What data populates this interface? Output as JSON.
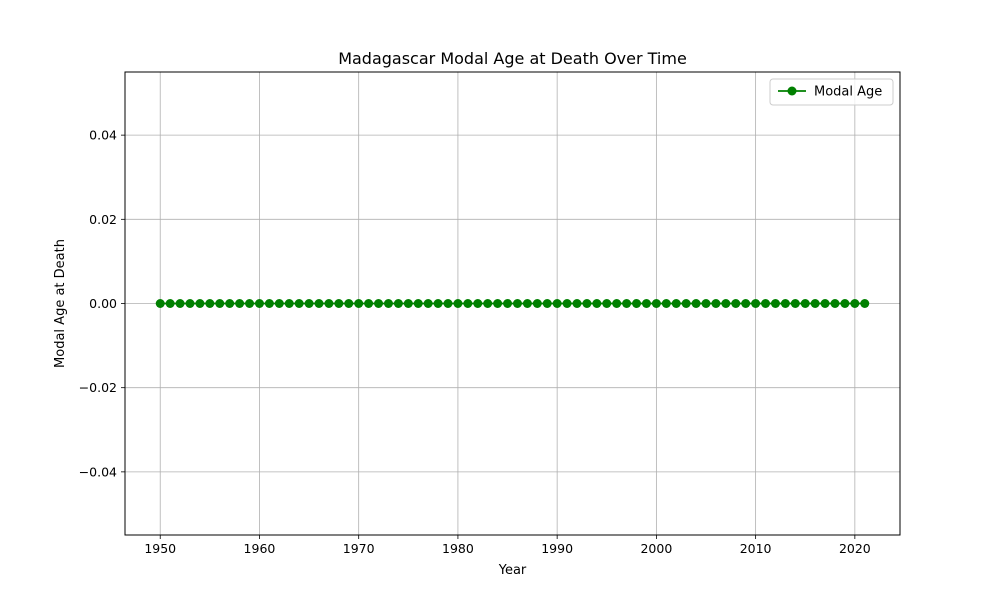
{
  "chart_data": {
    "type": "line",
    "title": "Madagascar Modal Age at Death Over Time",
    "xlabel": "Year",
    "ylabel": "Modal Age at Death",
    "xlim": [
      1946.45,
      2024.55
    ],
    "ylim": [
      -0.055,
      0.055
    ],
    "x_ticks": [
      1950,
      1960,
      1970,
      1980,
      1990,
      2000,
      2010,
      2020
    ],
    "x_tick_labels": [
      "1950",
      "1960",
      "1970",
      "1980",
      "1990",
      "2000",
      "2010",
      "2020"
    ],
    "y_ticks": [
      -0.04,
      -0.02,
      0.0,
      0.02,
      0.04
    ],
    "y_tick_labels": [
      "−0.04",
      "−0.02",
      "0.00",
      "0.02",
      "0.04"
    ],
    "grid": true,
    "legend_position": "top-right",
    "series": [
      {
        "name": "Modal Age",
        "color": "#008000",
        "marker": "circle",
        "x": [
          1950,
          1951,
          1952,
          1953,
          1954,
          1955,
          1956,
          1957,
          1958,
          1959,
          1960,
          1961,
          1962,
          1963,
          1964,
          1965,
          1966,
          1967,
          1968,
          1969,
          1970,
          1971,
          1972,
          1973,
          1974,
          1975,
          1976,
          1977,
          1978,
          1979,
          1980,
          1981,
          1982,
          1983,
          1984,
          1985,
          1986,
          1987,
          1988,
          1989,
          1990,
          1991,
          1992,
          1993,
          1994,
          1995,
          1996,
          1997,
          1998,
          1999,
          2000,
          2001,
          2002,
          2003,
          2004,
          2005,
          2006,
          2007,
          2008,
          2009,
          2010,
          2011,
          2012,
          2013,
          2014,
          2015,
          2016,
          2017,
          2018,
          2019,
          2020,
          2021
        ],
        "values": [
          0,
          0,
          0,
          0,
          0,
          0,
          0,
          0,
          0,
          0,
          0,
          0,
          0,
          0,
          0,
          0,
          0,
          0,
          0,
          0,
          0,
          0,
          0,
          0,
          0,
          0,
          0,
          0,
          0,
          0,
          0,
          0,
          0,
          0,
          0,
          0,
          0,
          0,
          0,
          0,
          0,
          0,
          0,
          0,
          0,
          0,
          0,
          0,
          0,
          0,
          0,
          0,
          0,
          0,
          0,
          0,
          0,
          0,
          0,
          0,
          0,
          0,
          0,
          0,
          0,
          0,
          0,
          0,
          0,
          0,
          0,
          0
        ]
      }
    ]
  }
}
